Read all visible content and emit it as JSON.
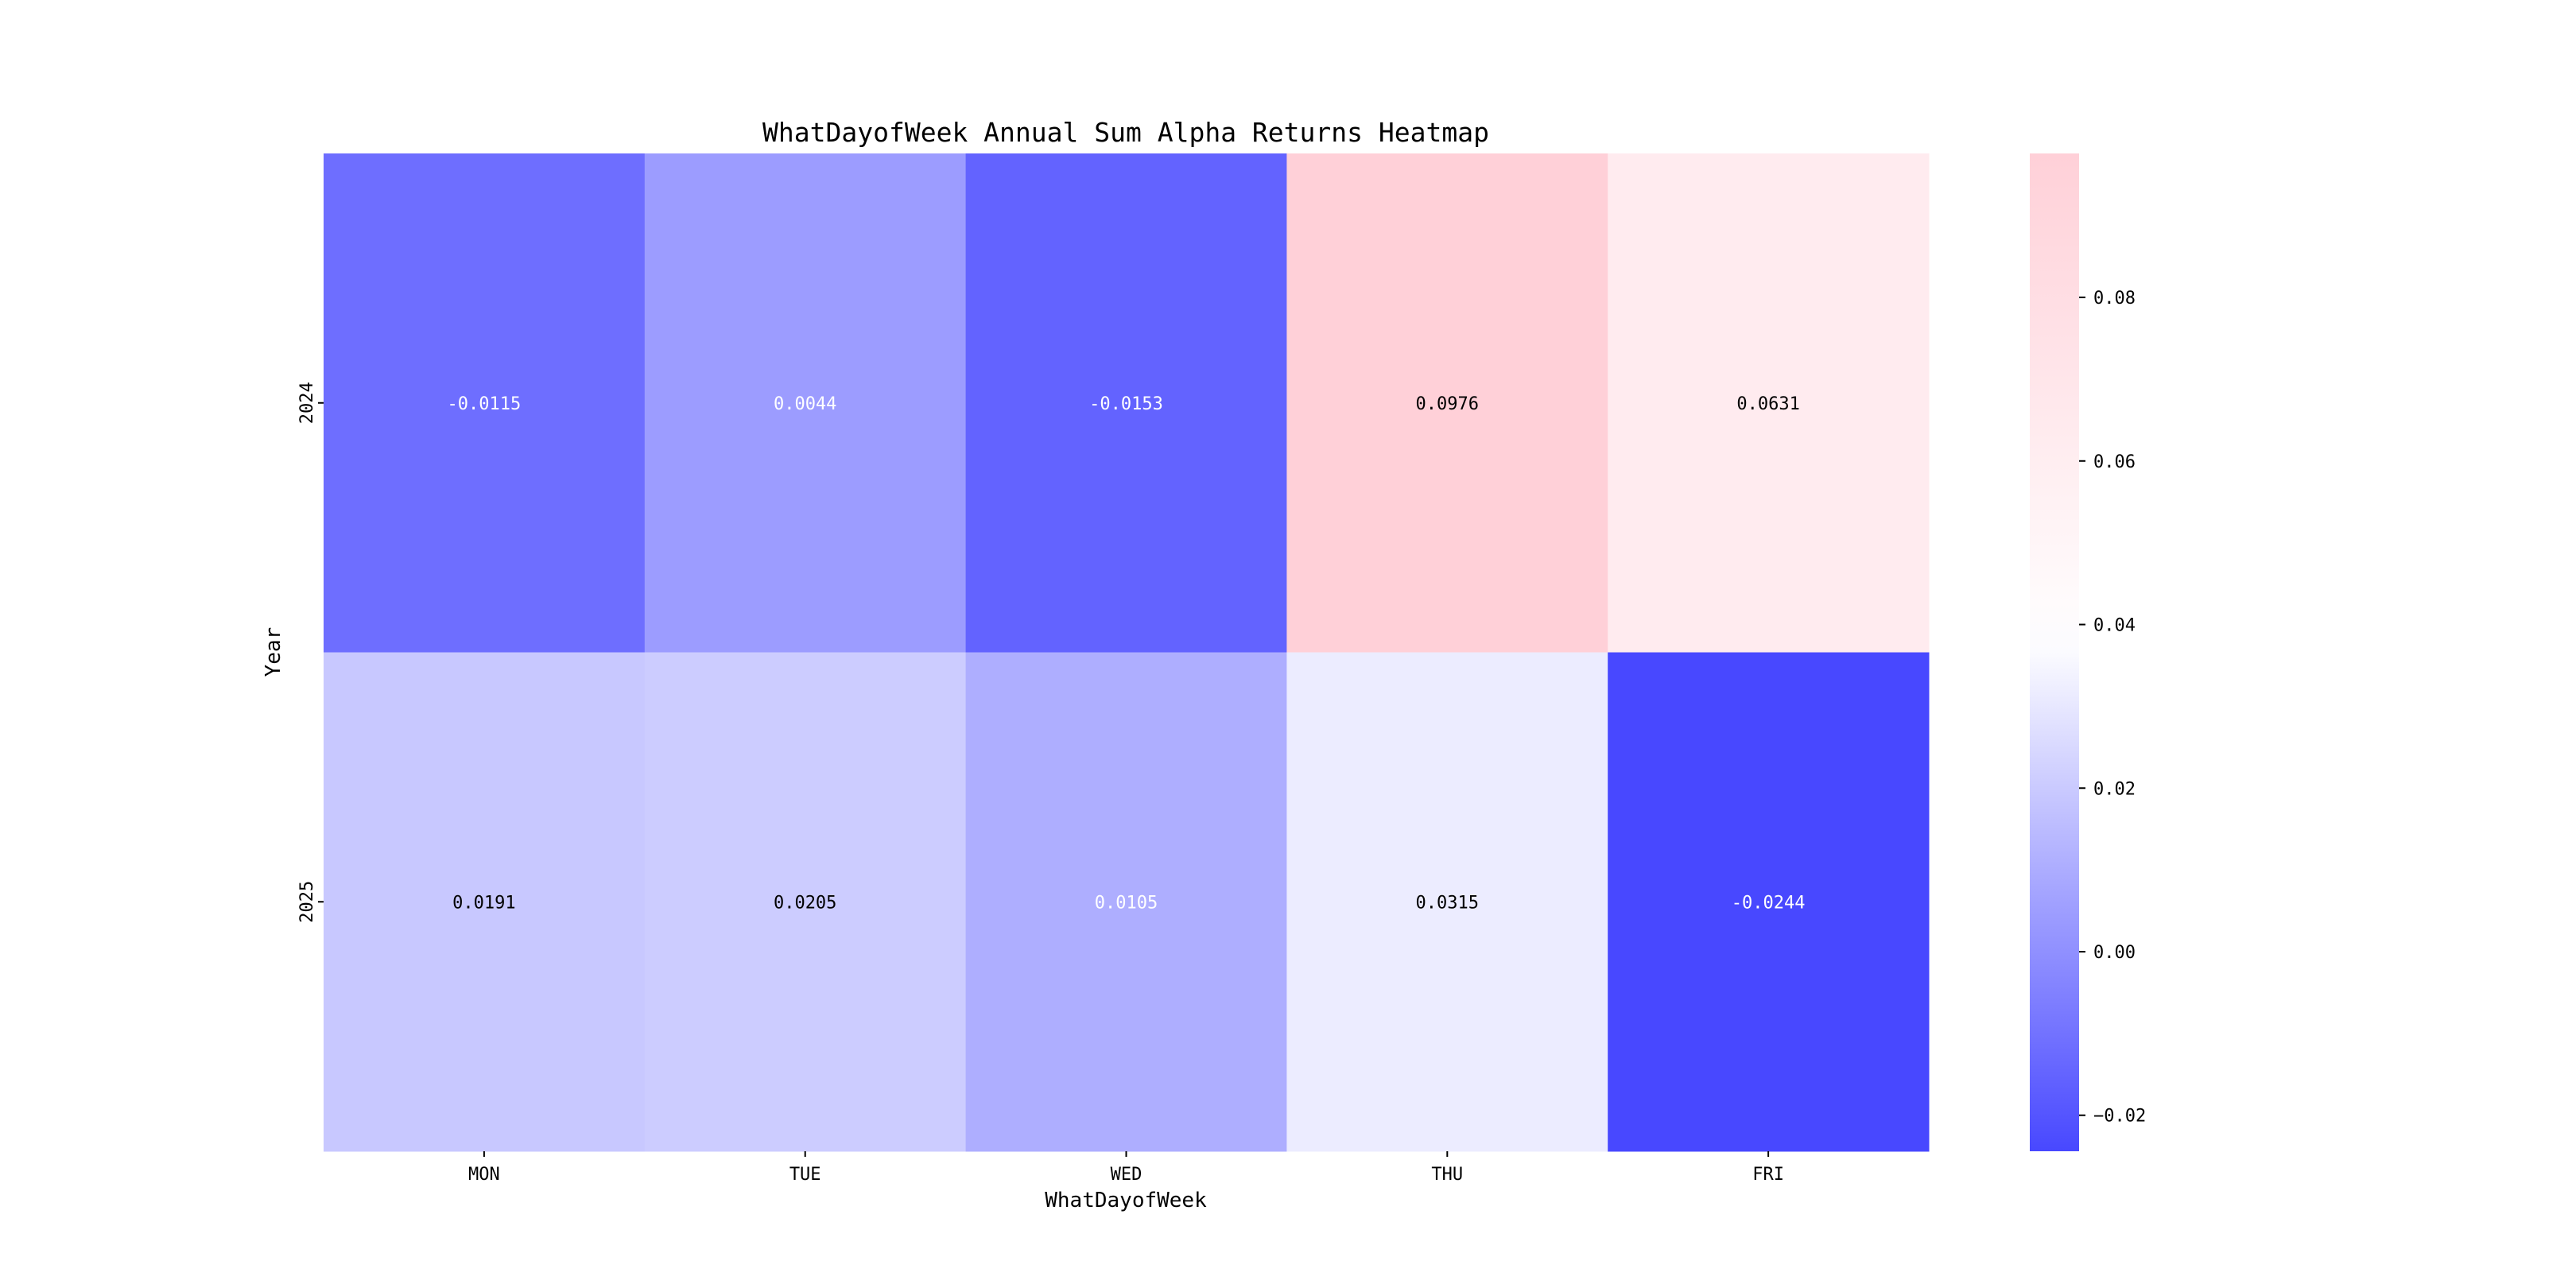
{
  "chart_data": {
    "type": "heatmap",
    "title": "WhatDayofWeek Annual Sum Alpha Returns Heatmap",
    "xlabel": "WhatDayofWeek",
    "ylabel": "Year",
    "x_categories": [
      "MON",
      "TUE",
      "WED",
      "THU",
      "FRI"
    ],
    "y_categories": [
      "2024",
      "2025"
    ],
    "values": [
      [
        -0.0115,
        0.0044,
        -0.0153,
        0.0976,
        0.0631
      ],
      [
        0.0191,
        0.0205,
        0.0105,
        0.0315,
        -0.0244
      ]
    ],
    "annotations": [
      [
        "-0.0115",
        "0.0044",
        "-0.0153",
        "0.0976",
        "0.0631"
      ],
      [
        "0.0191",
        "0.0205",
        "0.0105",
        "0.0315",
        "-0.0244"
      ]
    ],
    "colorbar": {
      "range": [
        -0.0244,
        0.0976
      ],
      "ticks": [
        -0.02,
        0.0,
        0.02,
        0.04,
        0.06,
        0.08
      ],
      "tick_labels": [
        "−0.02",
        "0.00",
        "0.02",
        "0.04",
        "0.06",
        "0.08"
      ],
      "colors": {
        "low": "#4848ff",
        "mid": "#ffffff",
        "high": "#ffd0d8"
      },
      "mid_value": 0.038
    }
  }
}
